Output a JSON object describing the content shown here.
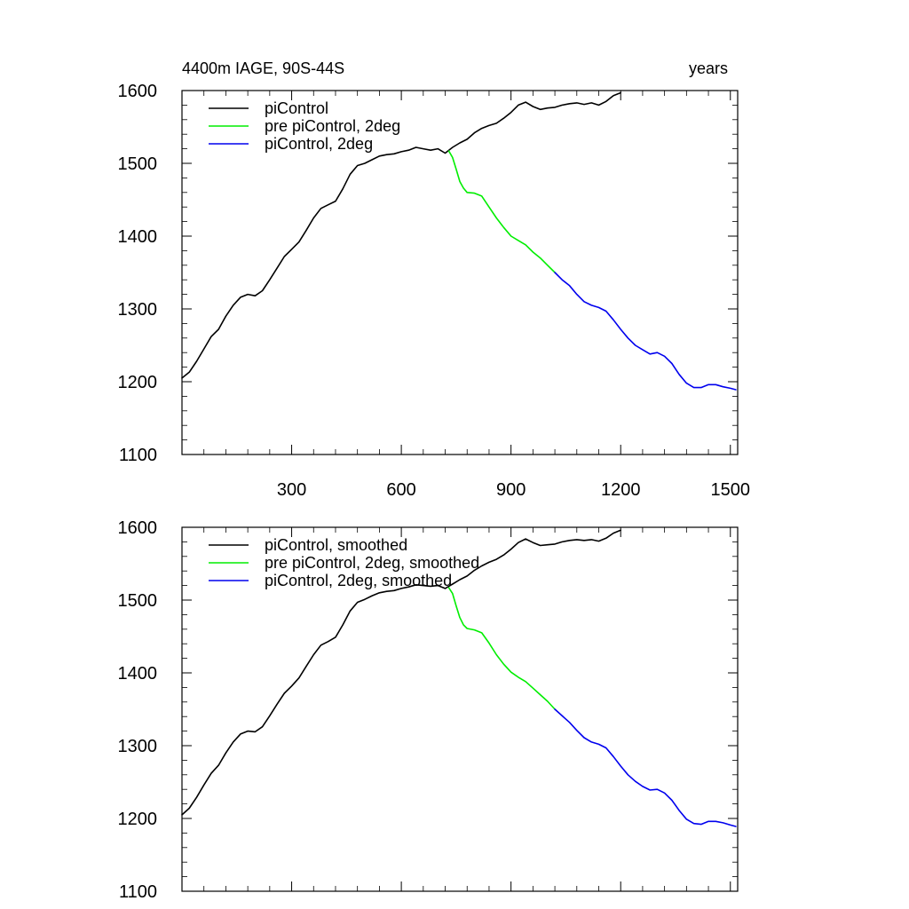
{
  "header": {
    "title": "4400m IAGE, 90S-44S",
    "units": "years"
  },
  "chart_data": [
    {
      "type": "line",
      "title": "4400m IAGE, 90S-44S",
      "units": "years",
      "xlim": [
        0,
        1520
      ],
      "ylim": [
        1100,
        1600
      ],
      "xticks": [
        300,
        600,
        900,
        1200,
        1500
      ],
      "xticks_labeled": true,
      "yticks": [
        1100,
        1200,
        1300,
        1400,
        1500,
        1600
      ],
      "legend_position": "top-left",
      "series": [
        {
          "name": "piControl",
          "color": "#000000",
          "points": [
            [
              0,
              1205
            ],
            [
              20,
              1213
            ],
            [
              40,
              1228
            ],
            [
              60,
              1245
            ],
            [
              80,
              1262
            ],
            [
              100,
              1272
            ],
            [
              120,
              1290
            ],
            [
              140,
              1305
            ],
            [
              160,
              1316
            ],
            [
              180,
              1320
            ],
            [
              200,
              1318
            ],
            [
              220,
              1325
            ],
            [
              240,
              1340
            ],
            [
              260,
              1356
            ],
            [
              280,
              1372
            ],
            [
              300,
              1382
            ],
            [
              320,
              1392
            ],
            [
              340,
              1408
            ],
            [
              360,
              1425
            ],
            [
              380,
              1438
            ],
            [
              400,
              1443
            ],
            [
              420,
              1448
            ],
            [
              440,
              1465
            ],
            [
              460,
              1485
            ],
            [
              480,
              1497
            ],
            [
              500,
              1500
            ],
            [
              520,
              1505
            ],
            [
              540,
              1510
            ],
            [
              560,
              1512
            ],
            [
              580,
              1513
            ],
            [
              600,
              1516
            ],
            [
              620,
              1518
            ],
            [
              640,
              1522
            ],
            [
              660,
              1520
            ],
            [
              680,
              1518
            ],
            [
              700,
              1520
            ],
            [
              720,
              1514
            ],
            [
              740,
              1522
            ],
            [
              760,
              1528
            ],
            [
              780,
              1533
            ],
            [
              800,
              1542
            ],
            [
              820,
              1548
            ],
            [
              840,
              1552
            ],
            [
              860,
              1555
            ],
            [
              880,
              1562
            ],
            [
              900,
              1570
            ],
            [
              920,
              1580
            ],
            [
              940,
              1584
            ],
            [
              960,
              1578
            ],
            [
              980,
              1574
            ],
            [
              1000,
              1576
            ],
            [
              1020,
              1577
            ],
            [
              1040,
              1580
            ],
            [
              1060,
              1582
            ],
            [
              1080,
              1583
            ],
            [
              1100,
              1581
            ],
            [
              1120,
              1583
            ],
            [
              1140,
              1580
            ],
            [
              1160,
              1585
            ],
            [
              1180,
              1593
            ],
            [
              1200,
              1597
            ]
          ]
        },
        {
          "name": "pre piControl, 2deg",
          "color": "#00ee00",
          "points": [
            [
              730,
              1517
            ],
            [
              740,
              1508
            ],
            [
              750,
              1492
            ],
            [
              760,
              1475
            ],
            [
              770,
              1466
            ],
            [
              780,
              1460
            ],
            [
              800,
              1459
            ],
            [
              820,
              1455
            ],
            [
              840,
              1440
            ],
            [
              860,
              1425
            ],
            [
              880,
              1412
            ],
            [
              900,
              1400
            ],
            [
              920,
              1394
            ],
            [
              940,
              1388
            ],
            [
              960,
              1378
            ],
            [
              980,
              1370
            ],
            [
              1000,
              1360
            ],
            [
              1020,
              1350
            ]
          ]
        },
        {
          "name": "piControl, 2deg",
          "color": "#0000ee",
          "points": [
            [
              1020,
              1350
            ],
            [
              1040,
              1340
            ],
            [
              1060,
              1332
            ],
            [
              1080,
              1320
            ],
            [
              1100,
              1310
            ],
            [
              1120,
              1305
            ],
            [
              1140,
              1302
            ],
            [
              1160,
              1297
            ],
            [
              1180,
              1285
            ],
            [
              1200,
              1272
            ],
            [
              1220,
              1260
            ],
            [
              1240,
              1250
            ],
            [
              1260,
              1244
            ],
            [
              1280,
              1238
            ],
            [
              1300,
              1240
            ],
            [
              1320,
              1235
            ],
            [
              1340,
              1225
            ],
            [
              1360,
              1210
            ],
            [
              1380,
              1198
            ],
            [
              1400,
              1192
            ],
            [
              1420,
              1192
            ],
            [
              1440,
              1196
            ],
            [
              1460,
              1196
            ],
            [
              1480,
              1193
            ],
            [
              1500,
              1191
            ],
            [
              1515,
              1189
            ]
          ]
        }
      ]
    },
    {
      "type": "line",
      "xlim": [
        0,
        1520
      ],
      "ylim": [
        1100,
        1600
      ],
      "xticks": [
        300,
        600,
        900,
        1200,
        1500
      ],
      "xticks_labeled": false,
      "yticks": [
        1100,
        1200,
        1300,
        1400,
        1500,
        1600
      ],
      "legend_position": "top-left",
      "series": [
        {
          "name": "piControl, smoothed",
          "color": "#000000",
          "points": [
            [
              0,
              1205
            ],
            [
              20,
              1214
            ],
            [
              40,
              1229
            ],
            [
              60,
              1246
            ],
            [
              80,
              1262
            ],
            [
              100,
              1273
            ],
            [
              120,
              1290
            ],
            [
              140,
              1305
            ],
            [
              160,
              1316
            ],
            [
              180,
              1320
            ],
            [
              200,
              1319
            ],
            [
              220,
              1326
            ],
            [
              240,
              1341
            ],
            [
              260,
              1357
            ],
            [
              280,
              1372
            ],
            [
              300,
              1382
            ],
            [
              320,
              1393
            ],
            [
              340,
              1409
            ],
            [
              360,
              1425
            ],
            [
              380,
              1438
            ],
            [
              400,
              1443
            ],
            [
              420,
              1449
            ],
            [
              440,
              1466
            ],
            [
              460,
              1485
            ],
            [
              480,
              1497
            ],
            [
              500,
              1501
            ],
            [
              520,
              1506
            ],
            [
              540,
              1510
            ],
            [
              560,
              1512
            ],
            [
              580,
              1513
            ],
            [
              600,
              1516
            ],
            [
              620,
              1518
            ],
            [
              640,
              1521
            ],
            [
              660,
              1520
            ],
            [
              680,
              1519
            ],
            [
              700,
              1520
            ],
            [
              720,
              1516
            ],
            [
              740,
              1522
            ],
            [
              760,
              1528
            ],
            [
              780,
              1533
            ],
            [
              800,
              1541
            ],
            [
              820,
              1547
            ],
            [
              840,
              1552
            ],
            [
              860,
              1556
            ],
            [
              880,
              1562
            ],
            [
              900,
              1570
            ],
            [
              920,
              1579
            ],
            [
              940,
              1584
            ],
            [
              960,
              1579
            ],
            [
              980,
              1575
            ],
            [
              1000,
              1576
            ],
            [
              1020,
              1577
            ],
            [
              1040,
              1580
            ],
            [
              1060,
              1582
            ],
            [
              1080,
              1583
            ],
            [
              1100,
              1582
            ],
            [
              1120,
              1583
            ],
            [
              1140,
              1581
            ],
            [
              1160,
              1585
            ],
            [
              1180,
              1592
            ],
            [
              1200,
              1596
            ]
          ]
        },
        {
          "name": "pre piControl, 2deg, smoothed",
          "color": "#00ee00",
          "points": [
            [
              730,
              1517
            ],
            [
              740,
              1509
            ],
            [
              750,
              1492
            ],
            [
              760,
              1476
            ],
            [
              770,
              1466
            ],
            [
              780,
              1461
            ],
            [
              800,
              1459
            ],
            [
              820,
              1455
            ],
            [
              840,
              1441
            ],
            [
              860,
              1425
            ],
            [
              880,
              1412
            ],
            [
              900,
              1401
            ],
            [
              920,
              1394
            ],
            [
              940,
              1388
            ],
            [
              960,
              1379
            ],
            [
              980,
              1370
            ],
            [
              1000,
              1361
            ],
            [
              1020,
              1350
            ]
          ]
        },
        {
          "name": "piControl, 2deg, smoothed",
          "color": "#0000ee",
          "points": [
            [
              1020,
              1350
            ],
            [
              1040,
              1341
            ],
            [
              1060,
              1332
            ],
            [
              1080,
              1321
            ],
            [
              1100,
              1311
            ],
            [
              1120,
              1305
            ],
            [
              1140,
              1302
            ],
            [
              1160,
              1297
            ],
            [
              1180,
              1285
            ],
            [
              1200,
              1272
            ],
            [
              1220,
              1260
            ],
            [
              1240,
              1251
            ],
            [
              1260,
              1244
            ],
            [
              1280,
              1239
            ],
            [
              1300,
              1240
            ],
            [
              1320,
              1235
            ],
            [
              1340,
              1225
            ],
            [
              1360,
              1211
            ],
            [
              1380,
              1199
            ],
            [
              1400,
              1193
            ],
            [
              1420,
              1192
            ],
            [
              1440,
              1196
            ],
            [
              1460,
              1196
            ],
            [
              1480,
              1194
            ],
            [
              1500,
              1191
            ],
            [
              1515,
              1189
            ]
          ]
        }
      ]
    }
  ]
}
